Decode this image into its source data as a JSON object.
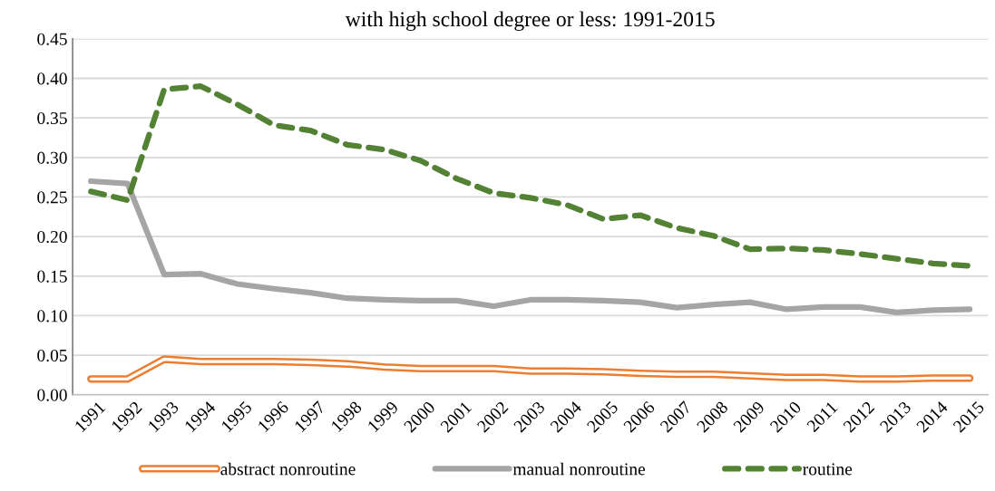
{
  "chart_data": {
    "type": "line",
    "title": "with high school degree or less: 1991-2015",
    "categories": [
      "1991",
      "1992",
      "1993",
      "1994",
      "1995",
      "1996",
      "1997",
      "1998",
      "1999",
      "2000",
      "2001",
      "2002",
      "2003",
      "2004",
      "2005",
      "2006",
      "2007",
      "2008",
      "2009",
      "2010",
      "2011",
      "2012",
      "2013",
      "2014",
      "2015"
    ],
    "series": [
      {
        "name": "abstract nonroutine",
        "color": "#ed7d31",
        "line_style": "solid",
        "values": [
          0.02,
          0.02,
          0.045,
          0.042,
          0.042,
          0.042,
          0.041,
          0.039,
          0.035,
          0.033,
          0.033,
          0.033,
          0.03,
          0.03,
          0.029,
          0.027,
          0.026,
          0.026,
          0.024,
          0.022,
          0.022,
          0.02,
          0.02,
          0.021,
          0.021
        ]
      },
      {
        "name": "manual nonroutine",
        "color": "#a5a5a5",
        "line_style": "solid",
        "values": [
          0.27,
          0.267,
          0.152,
          0.153,
          0.14,
          0.134,
          0.129,
          0.122,
          0.12,
          0.119,
          0.119,
          0.112,
          0.12,
          0.12,
          0.119,
          0.117,
          0.11,
          0.114,
          0.117,
          0.108,
          0.111,
          0.111,
          0.104,
          0.107,
          0.108
        ]
      },
      {
        "name": "routine",
        "color": "#548235",
        "line_style": "dashed",
        "values": [
          0.257,
          0.246,
          0.386,
          0.39,
          0.367,
          0.341,
          0.334,
          0.316,
          0.31,
          0.296,
          0.273,
          0.255,
          0.249,
          0.24,
          0.222,
          0.227,
          0.211,
          0.201,
          0.184,
          0.185,
          0.183,
          0.178,
          0.172,
          0.166,
          0.163
        ]
      }
    ],
    "ylim": [
      0,
      0.45
    ],
    "yticks": [
      {
        "value": 0,
        "label": "0.00"
      },
      {
        "value": 0.05,
        "label": "0.05"
      },
      {
        "value": 0.1,
        "label": "0.10"
      },
      {
        "value": 0.15,
        "label": "0.15"
      },
      {
        "value": 0.2,
        "label": "0.20"
      },
      {
        "value": 0.25,
        "label": "0.25"
      },
      {
        "value": 0.3,
        "label": "0.30"
      },
      {
        "value": 0.35,
        "label": "0.35"
      },
      {
        "value": 0.4,
        "label": "0.40"
      },
      {
        "value": 0.45,
        "label": "0.45"
      }
    ],
    "grid": "y",
    "legend": "bottom"
  }
}
